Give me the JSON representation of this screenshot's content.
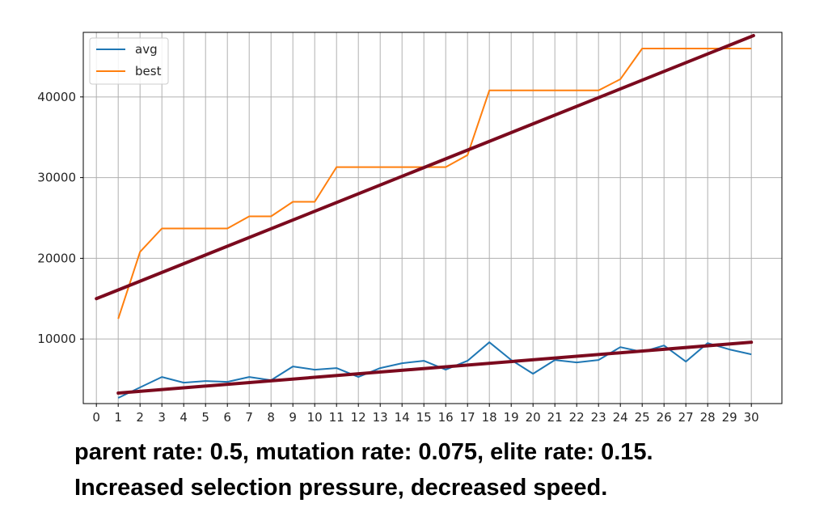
{
  "chart_data": {
    "type": "line",
    "x": [
      1,
      2,
      3,
      4,
      5,
      6,
      7,
      8,
      9,
      10,
      11,
      12,
      13,
      14,
      15,
      16,
      17,
      18,
      19,
      20,
      21,
      22,
      23,
      24,
      25,
      26,
      27,
      28,
      29,
      30
    ],
    "x_ticks": [
      0,
      1,
      2,
      3,
      4,
      5,
      6,
      7,
      8,
      9,
      10,
      11,
      12,
      13,
      14,
      15,
      16,
      17,
      18,
      19,
      20,
      21,
      22,
      23,
      24,
      25,
      26,
      27,
      28,
      29,
      30
    ],
    "y_ticks": [
      10000,
      20000,
      30000,
      40000
    ],
    "xlim": [
      -0.6,
      31.4
    ],
    "ylim": [
      2000,
      48000
    ],
    "grid": true,
    "legend_position": "upper-left",
    "series": [
      {
        "name": "avg",
        "color": "#1f77b4",
        "values": [
          2700,
          4000,
          5300,
          4600,
          4800,
          4700,
          5300,
          4900,
          6600,
          6200,
          6400,
          5300,
          6400,
          7000,
          7300,
          6200,
          7300,
          9600,
          7400,
          5700,
          7400,
          7100,
          7400,
          9000,
          8400,
          9200,
          7200,
          9500,
          8700,
          8100
        ]
      },
      {
        "name": "best",
        "color": "#ff7f0e",
        "values": [
          12500,
          20800,
          23700,
          23700,
          23700,
          23700,
          25200,
          25200,
          27000,
          27000,
          31300,
          31300,
          31300,
          31300,
          31300,
          31300,
          32800,
          40800,
          40800,
          40800,
          40800,
          40800,
          40800,
          42200,
          46000,
          46000,
          46000,
          46000,
          46000,
          46000
        ]
      }
    ],
    "trend_lines": [
      {
        "color": "#7b0a1e",
        "x": [
          0,
          30.1
        ],
        "y": [
          15000,
          47600
        ]
      },
      {
        "color": "#7b0a1e",
        "x": [
          1,
          30
        ],
        "y": [
          3300,
          9600
        ]
      }
    ]
  },
  "caption": {
    "line1": "parent rate: 0.5, mutation rate: 0.075, elite rate: 0.15.",
    "line2": "Increased selection pressure, decreased speed."
  }
}
